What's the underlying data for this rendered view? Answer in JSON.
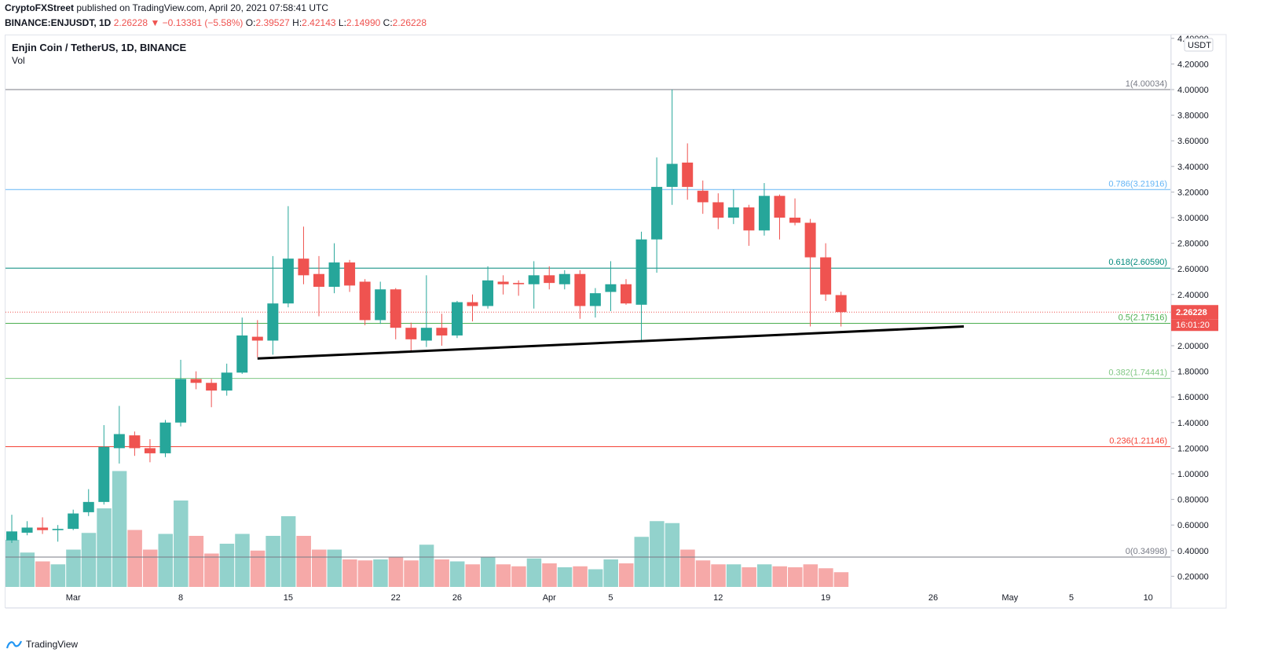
{
  "header": {
    "publisher": "CryptoFXStreet",
    "published_text": "published on TradingView.com, April 20, 2021 07:58:41 UTC",
    "symbol": "BINANCE:ENJUSDT, 1D",
    "last": "2.26228",
    "change": "−0.13381 (−5.58%)",
    "open_label": "O:",
    "open": "2.39527",
    "high_label": "H:",
    "high": "2.42143",
    "low_label": "L:",
    "low": "2.14990",
    "close_label": "C:",
    "close": "2.26228"
  },
  "legend": {
    "title": "Enjin Coin / TetherUS, 1D, BINANCE",
    "volume": "Vol"
  },
  "footer": {
    "brand": "TradingView"
  },
  "colors": {
    "up": "#26a69a",
    "down": "#ef5350",
    "vol_up": "#92d2cc",
    "vol_down": "#f6a9a8",
    "fib_1": "#787b86",
    "fib_0786": "#2196f3",
    "fib_0618": "#00897b",
    "fib_05": "#4caf50",
    "fib_0382": "#81c784",
    "fib_0236": "#f44336",
    "fib_0": "#787b86"
  },
  "chart_data": {
    "type": "candlestick",
    "currency": "USDT",
    "ylim": [
      0.1,
      4.4
    ],
    "y_ticks": [
      "4.40000",
      "4.20000",
      "4.00000",
      "3.80000",
      "3.60000",
      "3.40000",
      "3.20000",
      "3.00000",
      "2.80000",
      "2.60000",
      "2.40000",
      "2.20000",
      "2.00000",
      "1.80000",
      "1.60000",
      "1.40000",
      "1.20000",
      "1.00000",
      "0.80000",
      "0.60000",
      "0.40000",
      "0.20000"
    ],
    "x_ticks": [
      "Mar",
      "8",
      "15",
      "22",
      "26",
      "Apr",
      "5",
      "12",
      "19",
      "26",
      "May",
      "5",
      "10"
    ],
    "last_price_label": "2.26228",
    "countdown_label": "16:01:20",
    "fib_levels": [
      {
        "ratio": "1",
        "price": 4.00034,
        "label": "1(4.00034)",
        "color": "#787b86"
      },
      {
        "ratio": "0.786",
        "price": 3.21916,
        "label": "0.786(3.21916)",
        "color": "#64b5f6"
      },
      {
        "ratio": "0.618",
        "price": 2.6059,
        "label": "0.618(2.60590)",
        "color": "#00897b"
      },
      {
        "ratio": "0.5",
        "price": 2.17516,
        "label": "0.5(2.17516)",
        "color": "#4caf50"
      },
      {
        "ratio": "0.382",
        "price": 1.74441,
        "label": "0.382(1.74441)",
        "color": "#81c784"
      },
      {
        "ratio": "0.236",
        "price": 1.21146,
        "label": "0.236(1.21146)",
        "color": "#f44336"
      },
      {
        "ratio": "0",
        "price": 0.34998,
        "label": "0(0.34998)",
        "color": "#787b86"
      }
    ],
    "trendline": {
      "from": {
        "date": "Mar 13",
        "price": 1.9
      },
      "to": {
        "date": "Apr 30",
        "price": 2.15
      }
    },
    "candles": [
      {
        "date": "Feb 25",
        "o": 0.48,
        "h": 0.68,
        "l": 0.46,
        "c": 0.55,
        "v": 0.48
      },
      {
        "date": "Feb 26",
        "o": 0.54,
        "h": 0.63,
        "l": 0.52,
        "c": 0.58,
        "v": 0.35
      },
      {
        "date": "Feb 27",
        "o": 0.58,
        "h": 0.66,
        "l": 0.53,
        "c": 0.56,
        "v": 0.26
      },
      {
        "date": "Feb 28",
        "o": 0.56,
        "h": 0.6,
        "l": 0.47,
        "c": 0.57,
        "v": 0.23
      },
      {
        "date": "Mar 1",
        "o": 0.57,
        "h": 0.72,
        "l": 0.56,
        "c": 0.69,
        "v": 0.38
      },
      {
        "date": "Mar 2",
        "o": 0.7,
        "h": 0.88,
        "l": 0.67,
        "c": 0.78,
        "v": 0.55
      },
      {
        "date": "Mar 3",
        "o": 0.78,
        "h": 1.38,
        "l": 0.76,
        "c": 1.21,
        "v": 0.8
      },
      {
        "date": "Mar 4",
        "o": 1.2,
        "h": 1.53,
        "l": 1.08,
        "c": 1.31,
        "v": 1.18
      },
      {
        "date": "Mar 5",
        "o": 1.3,
        "h": 1.33,
        "l": 1.14,
        "c": 1.2,
        "v": 0.58
      },
      {
        "date": "Mar 6",
        "o": 1.2,
        "h": 1.27,
        "l": 1.09,
        "c": 1.16,
        "v": 0.38
      },
      {
        "date": "Mar 7",
        "o": 1.16,
        "h": 1.42,
        "l": 1.13,
        "c": 1.4,
        "v": 0.54
      },
      {
        "date": "Mar 8",
        "o": 1.4,
        "h": 1.89,
        "l": 1.37,
        "c": 1.74,
        "v": 0.88
      },
      {
        "date": "Mar 9",
        "o": 1.74,
        "h": 1.8,
        "l": 1.66,
        "c": 1.71,
        "v": 0.52
      },
      {
        "date": "Mar 10",
        "o": 1.71,
        "h": 1.74,
        "l": 1.52,
        "c": 1.65,
        "v": 0.34
      },
      {
        "date": "Mar 11",
        "o": 1.65,
        "h": 1.86,
        "l": 1.61,
        "c": 1.79,
        "v": 0.44
      },
      {
        "date": "Mar 12",
        "o": 1.79,
        "h": 2.22,
        "l": 1.78,
        "c": 2.08,
        "v": 0.54
      },
      {
        "date": "Mar 13",
        "o": 2.07,
        "h": 2.2,
        "l": 1.91,
        "c": 2.04,
        "v": 0.37
      },
      {
        "date": "Mar 14",
        "o": 2.04,
        "h": 2.7,
        "l": 1.93,
        "c": 2.33,
        "v": 0.52
      },
      {
        "date": "Mar 15",
        "o": 2.33,
        "h": 3.09,
        "l": 2.3,
        "c": 2.68,
        "v": 0.72
      },
      {
        "date": "Mar 16",
        "o": 2.68,
        "h": 2.93,
        "l": 2.48,
        "c": 2.55,
        "v": 0.52
      },
      {
        "date": "Mar 17",
        "o": 2.56,
        "h": 2.7,
        "l": 2.23,
        "c": 2.46,
        "v": 0.38
      },
      {
        "date": "Mar 18",
        "o": 2.46,
        "h": 2.8,
        "l": 2.41,
        "c": 2.65,
        "v": 0.38
      },
      {
        "date": "Mar 19",
        "o": 2.65,
        "h": 2.67,
        "l": 2.42,
        "c": 2.47,
        "v": 0.28
      },
      {
        "date": "Mar 20",
        "o": 2.5,
        "h": 2.52,
        "l": 2.16,
        "c": 2.2,
        "v": 0.27
      },
      {
        "date": "Mar 21",
        "o": 2.2,
        "h": 2.5,
        "l": 2.17,
        "c": 2.44,
        "v": 0.28
      },
      {
        "date": "Mar 22",
        "o": 2.44,
        "h": 2.45,
        "l": 2.05,
        "c": 2.14,
        "v": 0.3
      },
      {
        "date": "Mar 23",
        "o": 2.14,
        "h": 2.18,
        "l": 1.96,
        "c": 2.05,
        "v": 0.27
      },
      {
        "date": "Mar 24",
        "o": 2.04,
        "h": 2.55,
        "l": 1.99,
        "c": 2.14,
        "v": 0.43
      },
      {
        "date": "Mar 25",
        "o": 2.14,
        "h": 2.25,
        "l": 2.0,
        "c": 2.08,
        "v": 0.28
      },
      {
        "date": "Mar 26",
        "o": 2.08,
        "h": 2.35,
        "l": 2.06,
        "c": 2.34,
        "v": 0.26
      },
      {
        "date": "Mar 27",
        "o": 2.34,
        "h": 2.4,
        "l": 2.19,
        "c": 2.31,
        "v": 0.23
      },
      {
        "date": "Mar 28",
        "o": 2.31,
        "h": 2.62,
        "l": 2.29,
        "c": 2.51,
        "v": 0.3
      },
      {
        "date": "Mar 29",
        "o": 2.5,
        "h": 2.55,
        "l": 2.4,
        "c": 2.48,
        "v": 0.23
      },
      {
        "date": "Mar 30",
        "o": 2.49,
        "h": 2.51,
        "l": 2.39,
        "c": 2.48,
        "v": 0.21
      },
      {
        "date": "Mar 31",
        "o": 2.48,
        "h": 2.66,
        "l": 2.29,
        "c": 2.55,
        "v": 0.29
      },
      {
        "date": "Apr 1",
        "o": 2.55,
        "h": 2.62,
        "l": 2.44,
        "c": 2.49,
        "v": 0.24
      },
      {
        "date": "Apr 2",
        "o": 2.48,
        "h": 2.59,
        "l": 2.44,
        "c": 2.56,
        "v": 0.2
      },
      {
        "date": "Apr 3",
        "o": 2.56,
        "h": 2.59,
        "l": 2.21,
        "c": 2.31,
        "v": 0.21
      },
      {
        "date": "Apr 4",
        "o": 2.31,
        "h": 2.45,
        "l": 2.22,
        "c": 2.41,
        "v": 0.18
      },
      {
        "date": "Apr 5",
        "o": 2.42,
        "h": 2.66,
        "l": 2.27,
        "c": 2.48,
        "v": 0.28
      },
      {
        "date": "Apr 6",
        "o": 2.48,
        "h": 2.52,
        "l": 2.32,
        "c": 2.33,
        "v": 0.24
      },
      {
        "date": "Apr 7",
        "o": 2.32,
        "h": 2.89,
        "l": 2.04,
        "c": 2.83,
        "v": 0.51
      },
      {
        "date": "Apr 8",
        "o": 2.83,
        "h": 3.47,
        "l": 2.57,
        "c": 3.24,
        "v": 0.67
      },
      {
        "date": "Apr 9",
        "o": 3.24,
        "h": 4.0,
        "l": 3.1,
        "c": 3.42,
        "v": 0.65
      },
      {
        "date": "Apr 10",
        "o": 3.43,
        "h": 3.58,
        "l": 3.14,
        "c": 3.24,
        "v": 0.38
      },
      {
        "date": "Apr 11",
        "o": 3.21,
        "h": 3.29,
        "l": 3.03,
        "c": 3.12,
        "v": 0.27
      },
      {
        "date": "Apr 12",
        "o": 3.12,
        "h": 3.19,
        "l": 2.91,
        "c": 3.0,
        "v": 0.23
      },
      {
        "date": "Apr 13",
        "o": 3.0,
        "h": 3.22,
        "l": 2.95,
        "c": 3.08,
        "v": 0.23
      },
      {
        "date": "Apr 14",
        "o": 3.08,
        "h": 3.1,
        "l": 2.78,
        "c": 2.9,
        "v": 0.2
      },
      {
        "date": "Apr 15",
        "o": 2.9,
        "h": 3.27,
        "l": 2.86,
        "c": 3.17,
        "v": 0.23
      },
      {
        "date": "Apr 16",
        "o": 3.17,
        "h": 3.18,
        "l": 2.83,
        "c": 3.0,
        "v": 0.21
      },
      {
        "date": "Apr 17",
        "o": 3.0,
        "h": 3.15,
        "l": 2.94,
        "c": 2.96,
        "v": 0.2
      },
      {
        "date": "Apr 18",
        "o": 2.96,
        "h": 2.99,
        "l": 2.15,
        "c": 2.69,
        "v": 0.23
      },
      {
        "date": "Apr 19",
        "o": 2.69,
        "h": 2.8,
        "l": 2.35,
        "c": 2.4,
        "v": 0.19
      },
      {
        "date": "Apr 20",
        "o": 2.39527,
        "h": 2.42143,
        "l": 2.1499,
        "c": 2.26228,
        "v": 0.15
      }
    ]
  }
}
